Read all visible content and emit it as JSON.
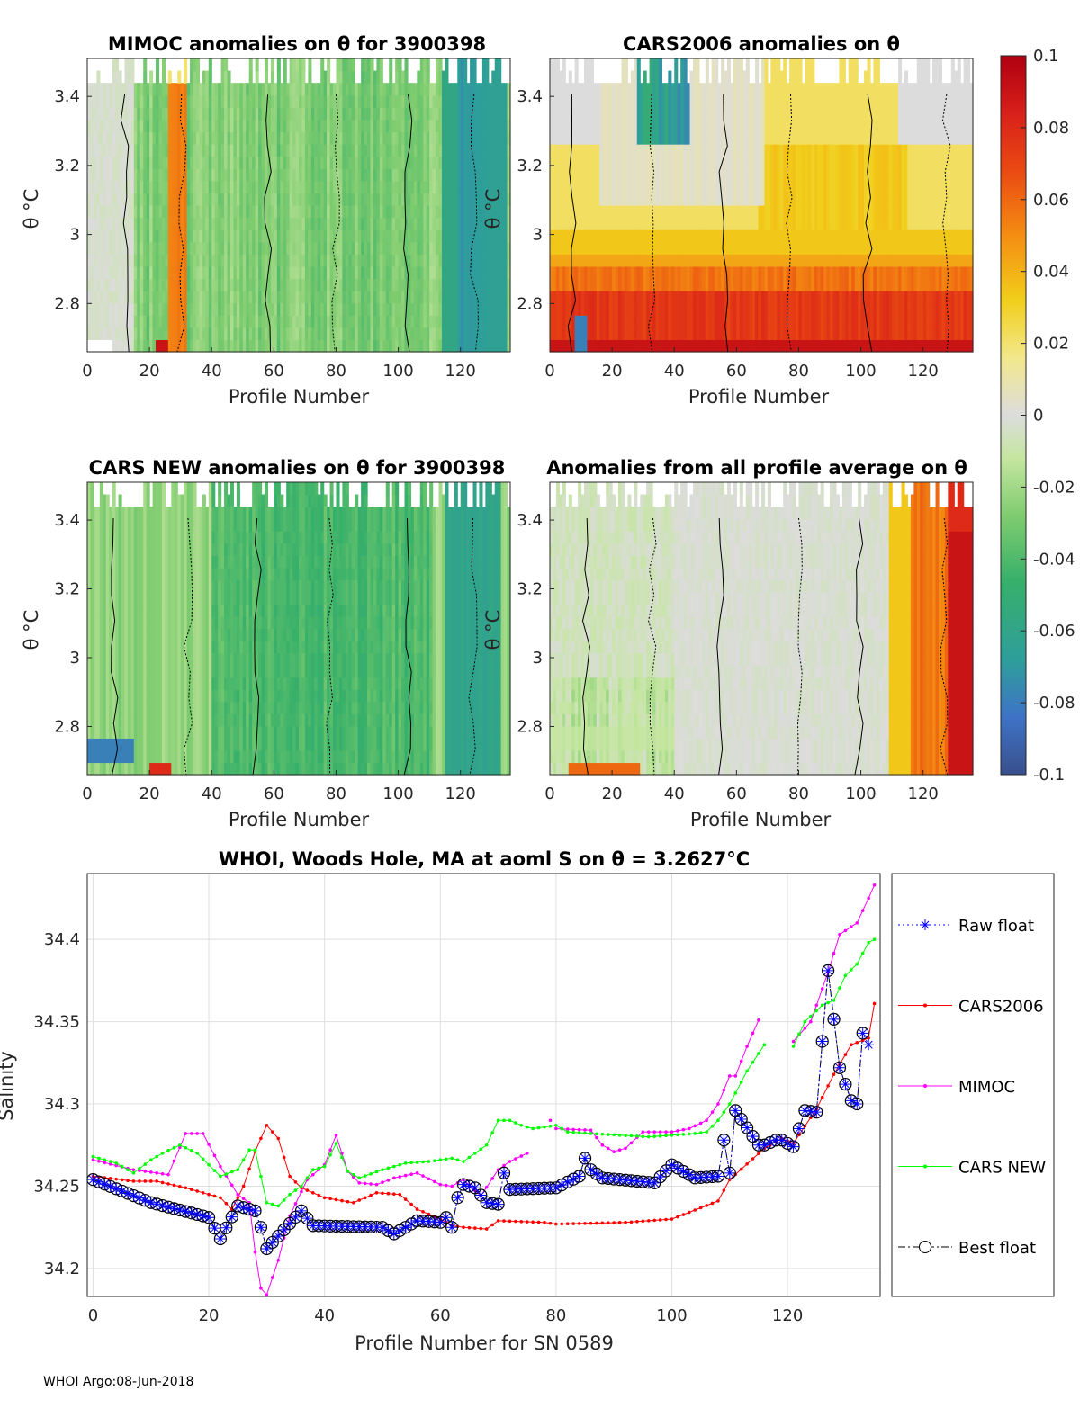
{
  "footer": "WHOI Argo:08-Jun-2018",
  "colorbar": {
    "ticks": [
      "0.1",
      "0.08",
      "0.06",
      "0.04",
      "0.02",
      "0",
      "-0.02",
      "-0.04",
      "-0.06",
      "-0.08",
      "-0.1"
    ],
    "range": [
      -0.1,
      0.1
    ]
  },
  "panels": [
    {
      "title": "MIMOC anomalies on θ  for 3900398",
      "xlabel": "Profile Number",
      "ylabel": "θ °C",
      "pattern": "mimoc"
    },
    {
      "title": "CARS2006 anomalies on θ",
      "xlabel": "Profile Number",
      "ylabel": "θ °C",
      "pattern": "cars2006"
    },
    {
      "title": "CARS NEW anomalies on θ for 3900398",
      "xlabel": "Profile Number",
      "ylabel": "θ °C",
      "pattern": "carsnew"
    },
    {
      "title": "Anomalies from all profile average on θ",
      "xlabel": "Profile Number",
      "ylabel": "θ °C",
      "pattern": "average"
    }
  ],
  "panel_axes": {
    "xticks": [
      "0",
      "20",
      "40",
      "60",
      "80",
      "100",
      "120"
    ],
    "yticks": [
      "3.4",
      "3.2",
      "3",
      "2.8"
    ],
    "xlim": [
      0,
      136
    ],
    "ylim": [
      2.66,
      3.51
    ]
  },
  "chart_data": {
    "type": "line",
    "title": "WHOI, Woods Hole, MA at aoml S on θ = 3.2627°C",
    "xlabel": "Profile Number for SN 0589",
    "ylabel": "Salinity",
    "xlim": [
      -1,
      136
    ],
    "ylim": [
      34.183,
      34.44
    ],
    "xticks": [
      "0",
      "20",
      "40",
      "60",
      "80",
      "100",
      "120"
    ],
    "yticks": [
      "34.4",
      "34.35",
      "34.3",
      "34.25",
      "34.2"
    ],
    "series": [
      {
        "name": "Raw float",
        "color": "#0000ff",
        "style": "dotted",
        "marker": "star",
        "seg": [
          [
            0,
            134.2
          ]
        ],
        "knots": [
          [
            0,
            34.254
          ],
          [
            10,
            34.24
          ],
          [
            20,
            34.231
          ],
          [
            22,
            34.218
          ],
          [
            25,
            34.238
          ],
          [
            28,
            34.235
          ],
          [
            29,
            34.225
          ],
          [
            30,
            34.212
          ],
          [
            36,
            34.235
          ],
          [
            38,
            34.226
          ],
          [
            50,
            34.225
          ],
          [
            52,
            34.221
          ],
          [
            56,
            34.229
          ],
          [
            60,
            34.228
          ],
          [
            61,
            34.231
          ],
          [
            62,
            34.225
          ],
          [
            63,
            34.243
          ],
          [
            64,
            34.251
          ],
          [
            66,
            34.249
          ],
          [
            68,
            34.24
          ],
          [
            70,
            34.239
          ],
          [
            71,
            34.258
          ],
          [
            72,
            34.248
          ],
          [
            80,
            34.249
          ],
          [
            84,
            34.256
          ],
          [
            85,
            34.267
          ],
          [
            86,
            34.26
          ],
          [
            88,
            34.255
          ],
          [
            97,
            34.252
          ],
          [
            100,
            34.263
          ],
          [
            102,
            34.259
          ],
          [
            104,
            34.255
          ],
          [
            108,
            34.256
          ],
          [
            109,
            34.278
          ],
          [
            110,
            34.258
          ],
          [
            111,
            34.296
          ],
          [
            115,
            34.275
          ],
          [
            116,
            34.275
          ],
          [
            118,
            34.278
          ],
          [
            119,
            34.278
          ],
          [
            121,
            34.274
          ],
          [
            123,
            34.296
          ],
          [
            125,
            34.295
          ],
          [
            127,
            34.381
          ],
          [
            129,
            34.322
          ],
          [
            131,
            34.302
          ],
          [
            132,
            34.3
          ],
          [
            133,
            34.343
          ],
          [
            134,
            34.336
          ],
          [
            135,
            34.349
          ]
        ]
      },
      {
        "name": "CARS2006",
        "color": "#ff0000",
        "style": "solid",
        "marker": "dot",
        "seg": [
          [
            0,
            135
          ]
        ],
        "knots": [
          [
            0,
            34.256
          ],
          [
            7,
            34.253
          ],
          [
            11,
            34.253
          ],
          [
            16,
            34.249
          ],
          [
            22,
            34.243
          ],
          [
            24,
            34.236
          ],
          [
            26,
            34.25
          ],
          [
            28,
            34.271
          ],
          [
            30,
            34.287
          ],
          [
            32,
            34.279
          ],
          [
            34,
            34.256
          ],
          [
            36,
            34.249
          ],
          [
            38,
            34.246
          ],
          [
            40,
            34.243
          ],
          [
            45,
            34.24
          ],
          [
            49,
            34.246
          ],
          [
            53,
            34.245
          ],
          [
            56,
            34.236
          ],
          [
            60,
            34.23
          ],
          [
            62,
            34.226
          ],
          [
            64,
            34.225
          ],
          [
            68,
            34.224
          ],
          [
            70,
            34.229
          ],
          [
            78,
            34.228
          ],
          [
            80,
            34.227
          ],
          [
            92,
            34.228
          ],
          [
            100,
            34.23
          ],
          [
            108,
            34.241
          ],
          [
            110,
            34.254
          ],
          [
            116,
            34.273
          ],
          [
            119,
            34.279
          ],
          [
            121,
            34.276
          ],
          [
            125,
            34.297
          ],
          [
            128,
            34.318
          ],
          [
            131,
            34.336
          ],
          [
            134,
            34.34
          ],
          [
            135,
            34.361
          ]
        ]
      },
      {
        "name": "MIMOC",
        "color": "#ff00ff",
        "style": "solid",
        "marker": "dot",
        "seg": [
          [
            0,
            75
          ],
          [
            79,
            79
          ],
          [
            80,
            115
          ],
          [
            121,
            135
          ]
        ],
        "knots": [
          [
            0,
            34.266
          ],
          [
            7,
            34.26
          ],
          [
            13,
            34.257
          ],
          [
            16,
            34.282
          ],
          [
            19,
            34.282
          ],
          [
            22,
            34.262
          ],
          [
            25,
            34.245
          ],
          [
            27,
            34.24
          ],
          [
            28,
            34.21
          ],
          [
            29,
            34.188
          ],
          [
            30,
            34.184
          ],
          [
            32,
            34.205
          ],
          [
            34,
            34.232
          ],
          [
            37,
            34.254
          ],
          [
            40,
            34.263
          ],
          [
            42,
            34.281
          ],
          [
            44,
            34.259
          ],
          [
            46,
            34.252
          ],
          [
            49,
            34.251
          ],
          [
            52,
            34.255
          ],
          [
            56,
            34.258
          ],
          [
            60,
            34.251
          ],
          [
            62,
            34.25
          ],
          [
            64,
            34.254
          ],
          [
            67,
            34.244
          ],
          [
            70,
            34.26
          ],
          [
            72,
            34.265
          ],
          [
            75,
            34.27
          ],
          [
            79,
            34.29
          ],
          [
            80,
            34.285
          ],
          [
            86,
            34.284
          ],
          [
            88,
            34.275
          ],
          [
            90,
            34.271
          ],
          [
            92,
            34.273
          ],
          [
            95,
            34.283
          ],
          [
            100,
            34.283
          ],
          [
            103,
            34.285
          ],
          [
            106,
            34.29
          ],
          [
            108,
            34.3
          ],
          [
            110,
            34.317
          ],
          [
            111,
            34.317
          ],
          [
            113,
            34.335
          ],
          [
            115,
            34.351
          ],
          [
            121,
            34.338
          ],
          [
            124,
            34.35
          ],
          [
            127,
            34.38
          ],
          [
            129,
            34.403
          ],
          [
            132,
            34.41
          ],
          [
            134,
            34.425
          ],
          [
            135,
            34.433
          ]
        ]
      },
      {
        "name": "CARS NEW",
        "color": "#00ff00",
        "style": "solid",
        "marker": "dot",
        "seg": [
          [
            0,
            116
          ],
          [
            121,
            135
          ]
        ],
        "knots": [
          [
            0,
            34.268
          ],
          [
            4,
            34.264
          ],
          [
            7,
            34.258
          ],
          [
            10,
            34.266
          ],
          [
            12,
            34.27
          ],
          [
            15,
            34.275
          ],
          [
            18,
            34.27
          ],
          [
            22,
            34.256
          ],
          [
            25,
            34.26
          ],
          [
            27,
            34.272
          ],
          [
            28,
            34.272
          ],
          [
            30,
            34.24
          ],
          [
            32,
            34.238
          ],
          [
            34,
            34.245
          ],
          [
            36,
            34.25
          ],
          [
            38,
            34.26
          ],
          [
            40,
            34.262
          ],
          [
            42,
            34.276
          ],
          [
            44,
            34.259
          ],
          [
            46,
            34.255
          ],
          [
            50,
            34.26
          ],
          [
            54,
            34.264
          ],
          [
            58,
            34.265
          ],
          [
            62,
            34.267
          ],
          [
            64,
            34.265
          ],
          [
            66,
            34.27
          ],
          [
            68,
            34.275
          ],
          [
            70,
            34.29
          ],
          [
            72,
            34.29
          ],
          [
            74,
            34.287
          ],
          [
            76,
            34.285
          ],
          [
            80,
            34.287
          ],
          [
            82,
            34.283
          ],
          [
            86,
            34.282
          ],
          [
            96,
            34.28
          ],
          [
            100,
            34.281
          ],
          [
            104,
            34.282
          ],
          [
            106,
            34.283
          ],
          [
            108,
            34.29
          ],
          [
            110,
            34.3
          ],
          [
            113,
            34.32
          ],
          [
            116,
            34.336
          ],
          [
            121,
            34.335
          ],
          [
            123,
            34.35
          ],
          [
            126,
            34.36
          ],
          [
            128,
            34.363
          ],
          [
            130,
            34.378
          ],
          [
            132,
            34.385
          ],
          [
            134,
            34.398
          ],
          [
            135,
            34.4
          ]
        ]
      },
      {
        "name": "Best float",
        "color": "#000000",
        "style": "dashdot",
        "marker": "circle",
        "seg": [
          [
            0,
            133
          ]
        ],
        "knots": [
          [
            0,
            34.254
          ],
          [
            10,
            34.24
          ],
          [
            20,
            34.231
          ],
          [
            22,
            34.218
          ],
          [
            25,
            34.238
          ],
          [
            28,
            34.235
          ],
          [
            29,
            34.225
          ],
          [
            30,
            34.212
          ],
          [
            36,
            34.235
          ],
          [
            38,
            34.226
          ],
          [
            50,
            34.225
          ],
          [
            52,
            34.221
          ],
          [
            56,
            34.229
          ],
          [
            60,
            34.228
          ],
          [
            61,
            34.231
          ],
          [
            62,
            34.225
          ],
          [
            63,
            34.243
          ],
          [
            64,
            34.251
          ],
          [
            66,
            34.249
          ],
          [
            68,
            34.24
          ],
          [
            70,
            34.239
          ],
          [
            71,
            34.258
          ],
          [
            72,
            34.248
          ],
          [
            80,
            34.249
          ],
          [
            84,
            34.256
          ],
          [
            85,
            34.267
          ],
          [
            86,
            34.26
          ],
          [
            88,
            34.255
          ],
          [
            97,
            34.252
          ],
          [
            100,
            34.263
          ],
          [
            102,
            34.259
          ],
          [
            104,
            34.255
          ],
          [
            108,
            34.256
          ],
          [
            109,
            34.278
          ],
          [
            110,
            34.258
          ],
          [
            111,
            34.296
          ],
          [
            115,
            34.275
          ],
          [
            116,
            34.275
          ],
          [
            118,
            34.278
          ],
          [
            119,
            34.278
          ],
          [
            121,
            34.274
          ],
          [
            123,
            34.296
          ],
          [
            125,
            34.295
          ],
          [
            127,
            34.381
          ],
          [
            129,
            34.322
          ],
          [
            131,
            34.302
          ],
          [
            132,
            34.3
          ],
          [
            133,
            34.343
          ]
        ]
      }
    ]
  }
}
